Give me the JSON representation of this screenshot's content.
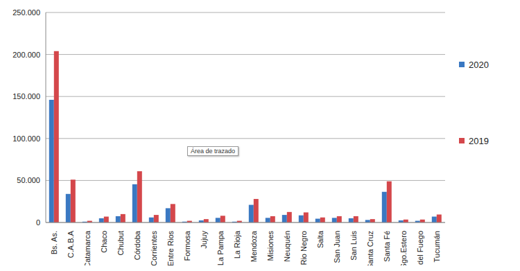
{
  "chart_data": {
    "type": "bar",
    "categories": [
      "Bs. As.",
      "C.A.B.A",
      "Catamarca",
      "Chaco",
      "Chubut",
      "Córdoba",
      "Corrientes",
      "Entre Rios",
      "Formosa",
      "Jujuy",
      "La Pampa",
      "La Rioja",
      "Mendoza",
      "Misiones",
      "Neuquén",
      "Rio Negro",
      "Salta",
      "San Juan",
      "San Luis",
      "Santa Cruz",
      "Santa Fé",
      "Sgo.Estero",
      "T.del Fuego",
      "Tucumán"
    ],
    "series": [
      {
        "name": "2020",
        "color": "#3a78c2",
        "values": [
          146000,
          34000,
          1000,
          5000,
          7500,
          45500,
          6000,
          17000,
          1000,
          2500,
          5500,
          1000,
          21000,
          5500,
          9000,
          8500,
          4500,
          5500,
          5000,
          3000,
          36500,
          2500,
          2000,
          7000
        ]
      },
      {
        "name": "2019",
        "color": "#d4474b",
        "values": [
          204000,
          51000,
          2000,
          7000,
          10000,
          61000,
          9000,
          22000,
          2000,
          4000,
          8000,
          2000,
          28000,
          7500,
          12500,
          12000,
          6000,
          7500,
          7500,
          4000,
          49000,
          3500,
          3500,
          9500
        ]
      }
    ],
    "ylim": [
      0,
      250000
    ],
    "yticks": [
      0,
      {
        "value": 50000,
        "label": "50.000"
      },
      {
        "value": 100000,
        "label": "100.000"
      },
      {
        "value": 150000,
        "label": "150.000"
      },
      {
        "value": 200000,
        "label": "200.000"
      },
      {
        "value": 250000,
        "label": "250.000"
      }
    ],
    "grid": true,
    "legend": "right",
    "annotations": [
      "Área de trazado"
    ]
  }
}
